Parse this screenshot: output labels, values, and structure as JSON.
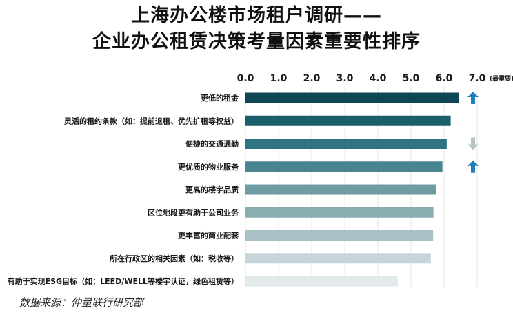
{
  "title_line1": "上海办公楼市场租户调研——",
  "title_line2": "企业办公租赁决策考量因素重要性排序",
  "source": "数据来源：仲量联行研究部",
  "chart_data": {
    "type": "bar",
    "orientation": "horizontal",
    "xlim": [
      0,
      7
    ],
    "ticks": [
      "0.0",
      "1.0",
      "2.0",
      "3.0",
      "4.0",
      "5.0",
      "6.0",
      "7.0"
    ],
    "tick_note": "(最重要)",
    "categories": [
      "更低的租金",
      "灵活的租约条款（如：提前退租、优先扩租等权益）",
      "便捷的交通通勤",
      "更优质的物业服务",
      "更高的楼宇品质",
      "区位地段更有助于公司业务",
      "更丰富的商业配套",
      "所在行政区的相关因素（如：税收等）",
      "有助于实现ESG目标（如：LEED/WELL等楼宇认证，绿色租赁等）"
    ],
    "values": [
      6.45,
      6.2,
      6.08,
      5.95,
      5.75,
      5.68,
      5.67,
      5.6,
      4.6
    ],
    "colors": [
      "#0d4655",
      "#1a5f6c",
      "#2f7480",
      "#4a8490",
      "#6f9ca3",
      "#8aadb2",
      "#a8c1c5",
      "#c5d5d8",
      "#e2eaec"
    ],
    "trend_markers": [
      "up",
      null,
      "down",
      "up",
      null,
      null,
      null,
      null,
      null
    ],
    "trend_colors": {
      "up": "#1f7fb8",
      "down": "#b4c4c6"
    },
    "grid": "vertical",
    "legend": "none"
  }
}
